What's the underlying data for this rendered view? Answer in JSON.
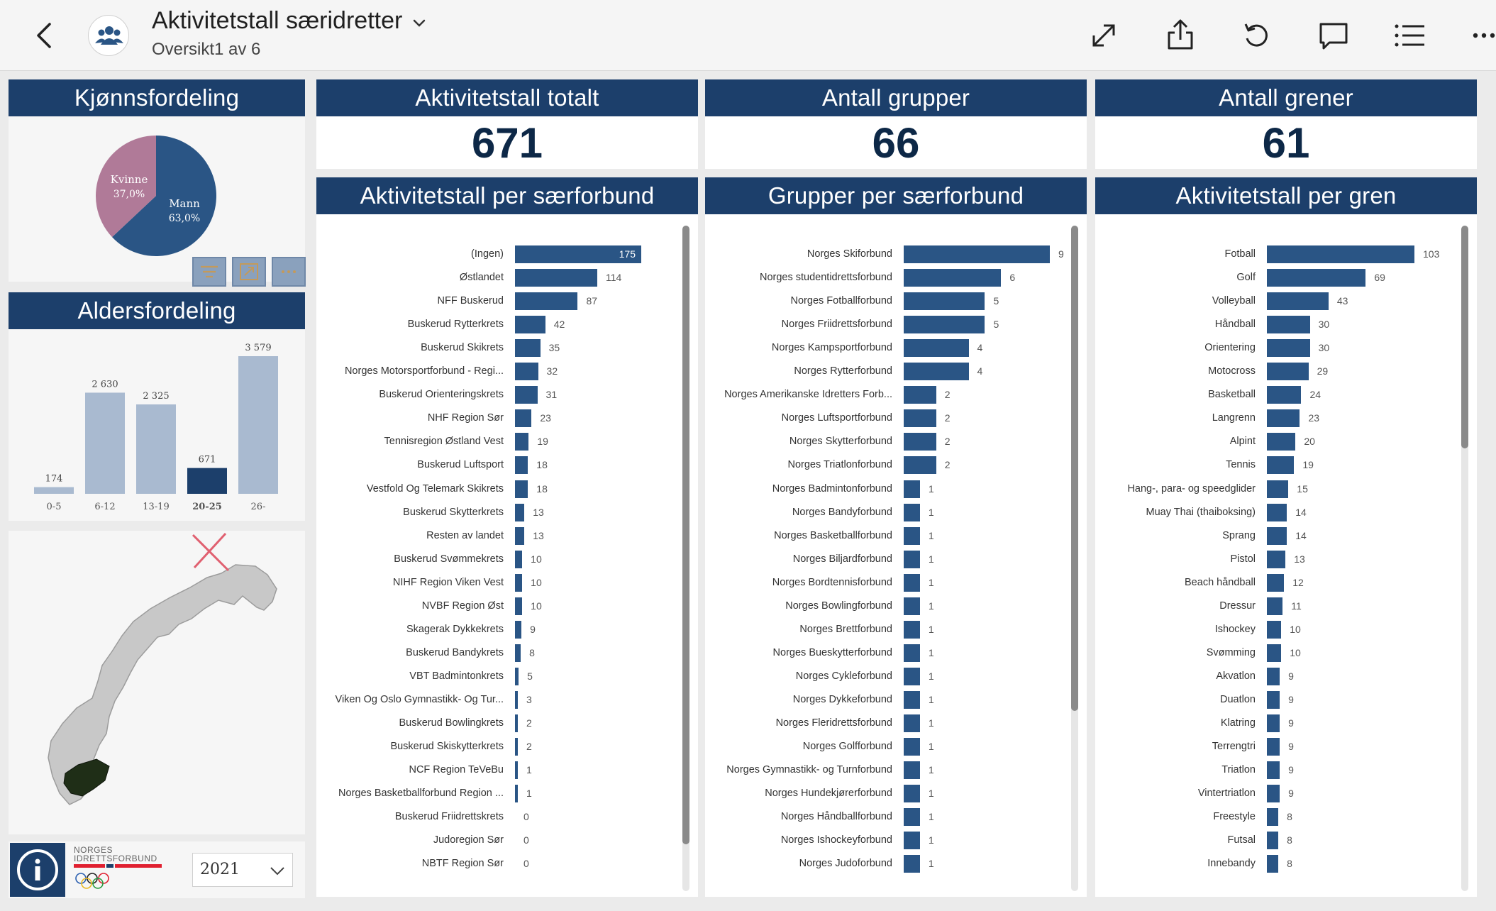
{
  "topbar": {
    "title": "Aktivitetstall særidretter",
    "subtitle": "Oversikt1 av 6",
    "icons": [
      "back-arrow-icon",
      "group-avatar-icon",
      "chevron-down-icon",
      "expand-icon",
      "share-icon",
      "reset-icon",
      "comment-icon",
      "list-icon",
      "more-icon"
    ]
  },
  "gender": {
    "title": "Kjønnsfordeling",
    "slices": [
      {
        "label": "Kvinne",
        "pct": "37,0%",
        "value": 37.0,
        "color": "#b07a98"
      },
      {
        "label": "Mann",
        "pct": "63,0%",
        "value": 63.0,
        "color": "#2a5585"
      }
    ]
  },
  "age": {
    "title": "Aldersfordeling",
    "bars": [
      {
        "cat": "0-5",
        "value": 174,
        "label": "174",
        "color": "#a9bad0"
      },
      {
        "cat": "6-12",
        "value": 2630,
        "label": "2 630",
        "color": "#a9bad0"
      },
      {
        "cat": "13-19",
        "value": 2325,
        "label": "2 325",
        "color": "#a9bad0"
      },
      {
        "cat": "20-25",
        "value": 671,
        "label": "671",
        "color": "#1c3f6b"
      },
      {
        "cat": "26-",
        "value": 3579,
        "label": "3 579",
        "color": "#a9bad0"
      }
    ]
  },
  "kpis": {
    "total": {
      "title": "Aktivitetstall totalt",
      "value": "671"
    },
    "groups": {
      "title": "Antall grupper",
      "value": "66"
    },
    "branches": {
      "title": "Antall grener",
      "value": "61"
    }
  },
  "chart_data": [
    {
      "type": "bar",
      "title": "Aktivitetstall per særforbund",
      "categories": [
        "(Ingen)",
        "Østlandet",
        "NFF Buskerud",
        "Buskerud Rytterkrets",
        "Buskerud Skikrets",
        "Norges Motorsportforbund - Regi...",
        "Buskerud Orienteringskrets",
        "NHF Region Sør",
        "Tennisregion Østland Vest",
        "Buskerud Luftsport",
        "Vestfold Og Telemark Skikrets",
        "Buskerud Skytterkrets",
        "Resten av landet",
        "Buskerud Svømmekrets",
        "NIHF Region Viken Vest",
        "NVBF Region Øst",
        "Skagerak Dykkekrets",
        "Buskerud Bandykrets",
        "VBT Badmintonkrets",
        "Viken Og Oslo Gymnastikk- Og Tur...",
        "Buskerud Bowlingkrets",
        "Buskerud Skiskytterkrets",
        "NCF Region TeVeBu",
        "Norges Basketballforbund Region ...",
        "Buskerud Friidrettskrets",
        "Judoregion Sør",
        "NBTF Region Sør"
      ],
      "values": [
        175,
        114,
        87,
        42,
        35,
        32,
        31,
        23,
        19,
        18,
        18,
        13,
        13,
        10,
        10,
        10,
        9,
        8,
        5,
        3,
        2,
        2,
        1,
        1,
        0,
        0,
        0
      ]
    },
    {
      "type": "bar",
      "title": "Grupper per særforbund",
      "categories": [
        "Norges Skiforbund",
        "Norges studentidrettsforbund",
        "Norges Fotballforbund",
        "Norges Friidrettsforbund",
        "Norges Kampsportforbund",
        "Norges Rytterforbund",
        "Norges Amerikanske Idretters Forb...",
        "Norges Luftsportforbund",
        "Norges Skytterforbund",
        "Norges Triatlonforbund",
        "Norges Badmintonforbund",
        "Norges Bandyforbund",
        "Norges Basketballforbund",
        "Norges Biljardforbund",
        "Norges Bordtennisforbund",
        "Norges Bowlingforbund",
        "Norges Brettforbund",
        "Norges Bueskytterforbund",
        "Norges Cykleforbund",
        "Norges Dykkeforbund",
        "Norges Fleridrettsforbund",
        "Norges Golfforbund",
        "Norges Gymnastikk- og Turnforbund",
        "Norges Hundekjørerforbund",
        "Norges Håndballforbund",
        "Norges Ishockeyforbund",
        "Norges Judoforbund"
      ],
      "values": [
        9,
        6,
        5,
        5,
        4,
        4,
        2,
        2,
        2,
        2,
        1,
        1,
        1,
        1,
        1,
        1,
        1,
        1,
        1,
        1,
        1,
        1,
        1,
        1,
        1,
        1,
        1
      ]
    },
    {
      "type": "bar",
      "title": "Aktivitetstall per gren",
      "categories": [
        "Fotball",
        "Golf",
        "Volleyball",
        "Håndball",
        "Orientering",
        "Motocross",
        "Basketball",
        "Langrenn",
        "Alpint",
        "Tennis",
        "Hang-, para- og speedglider",
        "Muay Thai (thaiboksing)",
        "Sprang",
        "Pistol",
        "Beach håndball",
        "Dressur",
        "Ishockey",
        "Svømming",
        "Akvatlon",
        "Duatlon",
        "Klatring",
        "Terrengtri",
        "Triatlon",
        "Vintertriatlon",
        "Freestyle",
        "Futsal",
        "Innebandy"
      ],
      "values": [
        103,
        69,
        43,
        30,
        30,
        29,
        24,
        23,
        20,
        19,
        15,
        14,
        14,
        13,
        12,
        11,
        10,
        10,
        9,
        9,
        9,
        9,
        9,
        9,
        8,
        8,
        8
      ]
    },
    {
      "type": "pie",
      "title": "Kjønnsfordeling",
      "categories": [
        "Kvinne",
        "Mann"
      ],
      "values": [
        37.0,
        63.0
      ]
    },
    {
      "type": "bar",
      "title": "Aldersfordeling",
      "categories": [
        "0-5",
        "6-12",
        "13-19",
        "20-25",
        "26-"
      ],
      "values": [
        174,
        2630,
        2325,
        671,
        3579
      ]
    }
  ],
  "footer": {
    "logo_text_1": "NORGES",
    "logo_text_2": "IDRETTSFORBUND",
    "year": "2021"
  },
  "colors": {
    "header": "#1c3f6b",
    "bar": "#2a5585",
    "kpi": "#0d2847",
    "age_bar": "#a9bad0",
    "pie_female": "#b07a98"
  }
}
